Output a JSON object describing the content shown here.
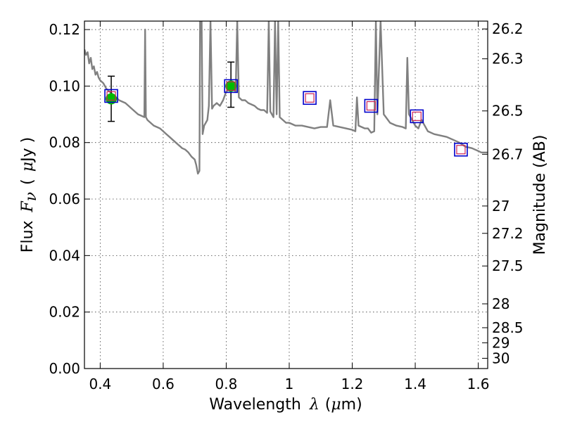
{
  "chart_data": {
    "type": "line",
    "title": "",
    "xlabel": {
      "text": "Wavelength",
      "symbol": "λ",
      "unit_open": "(",
      "unit_mu": "μ",
      "unit_rest": "m)"
    },
    "ylabel": {
      "text": "Flux",
      "symbol": "F",
      "subscript": "ν",
      "unit_open": "(",
      "unit_mu": "μ",
      "unit_rest": "Jy )"
    },
    "ylabel_right": "Magnitude (AB)",
    "xlim": [
      0.35,
      1.63
    ],
    "ylim": [
      0.0,
      0.123
    ],
    "grid": true,
    "x_ticks": [
      {
        "value": 0.4,
        "label": "0.4"
      },
      {
        "value": 0.6,
        "label": "0.6"
      },
      {
        "value": 0.8,
        "label": "0.8"
      },
      {
        "value": 1.0,
        "label": "1"
      },
      {
        "value": 1.2,
        "label": "1.2"
      },
      {
        "value": 1.4,
        "label": "1.4"
      },
      {
        "value": 1.6,
        "label": "1.6"
      }
    ],
    "y_ticks": [
      {
        "value": 0.0,
        "label": "0.00"
      },
      {
        "value": 0.02,
        "label": "0.02"
      },
      {
        "value": 0.04,
        "label": "0.04"
      },
      {
        "value": 0.06,
        "label": "0.06"
      },
      {
        "value": 0.08,
        "label": "0.08"
      },
      {
        "value": 0.1,
        "label": "0.10"
      },
      {
        "value": 0.12,
        "label": "0.12"
      }
    ],
    "right_ticks": [
      {
        "label": "26.2",
        "mag": 26.2
      },
      {
        "label": "26.3",
        "mag": 26.3
      },
      {
        "label": "26.5",
        "mag": 26.5
      },
      {
        "label": "26.7",
        "mag": 26.7
      },
      {
        "label": "27",
        "mag": 27.0
      },
      {
        "label": "27.2",
        "mag": 27.2
      },
      {
        "label": "27.5",
        "mag": 27.5
      },
      {
        "label": "28",
        "mag": 28.0
      },
      {
        "label": "28.5",
        "mag": 28.5
      },
      {
        "label": "29",
        "mag": 29.0
      },
      {
        "label": "30",
        "mag": 30.0
      }
    ],
    "colors": {
      "spectrum": "#808080",
      "observed": "#00bb00",
      "model_outer": "#0000cc",
      "model_inner": "#cc2255",
      "errorbar": "#000000"
    },
    "series": [
      {
        "name": "model spectrum",
        "style": "line",
        "points": [
          [
            0.35,
            0.113
          ],
          [
            0.355,
            0.111
          ],
          [
            0.36,
            0.112
          ],
          [
            0.365,
            0.108
          ],
          [
            0.37,
            0.11
          ],
          [
            0.375,
            0.106
          ],
          [
            0.38,
            0.107
          ],
          [
            0.385,
            0.104
          ],
          [
            0.39,
            0.105
          ],
          [
            0.395,
            0.103
          ],
          [
            0.4,
            0.102
          ],
          [
            0.41,
            0.101
          ],
          [
            0.42,
            0.099
          ],
          [
            0.43,
            0.098
          ],
          [
            0.44,
            0.097
          ],
          [
            0.45,
            0.096
          ],
          [
            0.46,
            0.095
          ],
          [
            0.47,
            0.0945
          ],
          [
            0.48,
            0.094
          ],
          [
            0.49,
            0.093
          ],
          [
            0.5,
            0.092
          ],
          [
            0.51,
            0.091
          ],
          [
            0.52,
            0.09
          ],
          [
            0.53,
            0.0895
          ],
          [
            0.54,
            0.089
          ],
          [
            0.5425,
            0.12
          ],
          [
            0.545,
            0.089
          ],
          [
            0.55,
            0.088
          ],
          [
            0.56,
            0.087
          ],
          [
            0.57,
            0.086
          ],
          [
            0.58,
            0.0855
          ],
          [
            0.59,
            0.085
          ],
          [
            0.6,
            0.084
          ],
          [
            0.61,
            0.083
          ],
          [
            0.62,
            0.082
          ],
          [
            0.63,
            0.081
          ],
          [
            0.64,
            0.08
          ],
          [
            0.65,
            0.079
          ],
          [
            0.66,
            0.078
          ],
          [
            0.67,
            0.0775
          ],
          [
            0.68,
            0.0765
          ],
          [
            0.69,
            0.075
          ],
          [
            0.7,
            0.074
          ],
          [
            0.705,
            0.072
          ],
          [
            0.71,
            0.069
          ],
          [
            0.715,
            0.07
          ],
          [
            0.717,
            0.123
          ],
          [
            0.722,
            0.123
          ],
          [
            0.725,
            0.083
          ],
          [
            0.73,
            0.086
          ],
          [
            0.74,
            0.088
          ],
          [
            0.745,
            0.093
          ],
          [
            0.75,
            0.123
          ],
          [
            0.755,
            0.092
          ],
          [
            0.76,
            0.093
          ],
          [
            0.77,
            0.094
          ],
          [
            0.78,
            0.093
          ],
          [
            0.79,
            0.095
          ],
          [
            0.8,
            0.098
          ],
          [
            0.81,
            0.099
          ],
          [
            0.82,
            0.099
          ],
          [
            0.83,
            0.098
          ],
          [
            0.835,
            0.123
          ],
          [
            0.84,
            0.096
          ],
          [
            0.85,
            0.095
          ],
          [
            0.86,
            0.095
          ],
          [
            0.87,
            0.094
          ],
          [
            0.88,
            0.0935
          ],
          [
            0.89,
            0.093
          ],
          [
            0.9,
            0.092
          ],
          [
            0.91,
            0.0915
          ],
          [
            0.92,
            0.0915
          ],
          [
            0.93,
            0.0905
          ],
          [
            0.935,
            0.123
          ],
          [
            0.94,
            0.091
          ],
          [
            0.95,
            0.089
          ],
          [
            0.955,
            0.123
          ],
          [
            0.96,
            0.09
          ],
          [
            0.965,
            0.123
          ],
          [
            0.97,
            0.089
          ],
          [
            0.98,
            0.088
          ],
          [
            0.99,
            0.087
          ],
          [
            1.0,
            0.087
          ],
          [
            1.02,
            0.086
          ],
          [
            1.04,
            0.086
          ],
          [
            1.06,
            0.0855
          ],
          [
            1.08,
            0.085
          ],
          [
            1.1,
            0.0855
          ],
          [
            1.12,
            0.0855
          ],
          [
            1.13,
            0.095
          ],
          [
            1.14,
            0.086
          ],
          [
            1.16,
            0.0855
          ],
          [
            1.18,
            0.085
          ],
          [
            1.2,
            0.0845
          ],
          [
            1.21,
            0.084
          ],
          [
            1.215,
            0.096
          ],
          [
            1.22,
            0.086
          ],
          [
            1.24,
            0.085
          ],
          [
            1.25,
            0.085
          ],
          [
            1.26,
            0.0835
          ],
          [
            1.27,
            0.084
          ],
          [
            1.275,
            0.123
          ],
          [
            1.28,
            0.09
          ],
          [
            1.29,
            0.123
          ],
          [
            1.3,
            0.09
          ],
          [
            1.32,
            0.087
          ],
          [
            1.34,
            0.086
          ],
          [
            1.36,
            0.0855
          ],
          [
            1.37,
            0.085
          ],
          [
            1.375,
            0.11
          ],
          [
            1.38,
            0.09
          ],
          [
            1.4,
            0.086
          ],
          [
            1.41,
            0.085
          ],
          [
            1.42,
            0.088
          ],
          [
            1.44,
            0.084
          ],
          [
            1.46,
            0.083
          ],
          [
            1.48,
            0.0825
          ],
          [
            1.5,
            0.082
          ],
          [
            1.52,
            0.081
          ],
          [
            1.54,
            0.08
          ],
          [
            1.56,
            0.0785
          ],
          [
            1.58,
            0.078
          ],
          [
            1.6,
            0.077
          ],
          [
            1.61,
            0.0765
          ],
          [
            1.63,
            0.0765
          ]
        ]
      },
      {
        "name": "observed photometry",
        "style": "circle",
        "points": [
          {
            "x": 0.435,
            "y": 0.0955,
            "yerr_low": 0.008,
            "yerr_high": 0.008
          },
          {
            "x": 0.815,
            "y": 0.1,
            "yerr_low": 0.0075,
            "yerr_high": 0.0085
          }
        ]
      },
      {
        "name": "model photometry",
        "style": "open-square",
        "points": [
          {
            "x": 0.435,
            "y": 0.0965
          },
          {
            "x": 0.815,
            "y": 0.1
          },
          {
            "x": 1.065,
            "y": 0.0958
          },
          {
            "x": 1.26,
            "y": 0.093
          },
          {
            "x": 1.405,
            "y": 0.0893
          },
          {
            "x": 1.545,
            "y": 0.0775
          }
        ]
      }
    ]
  }
}
